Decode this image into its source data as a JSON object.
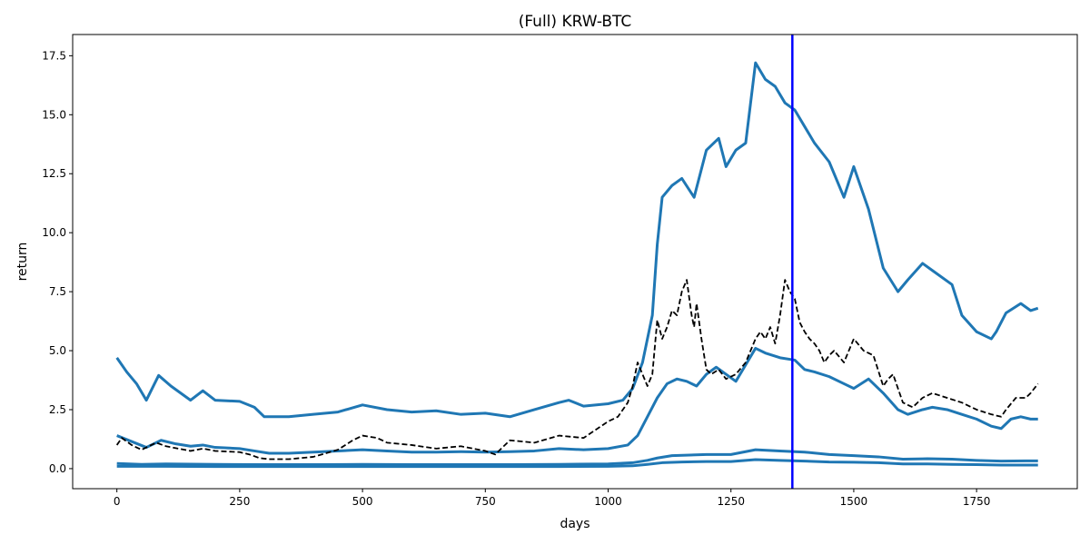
{
  "chart_data": {
    "type": "line",
    "title": "(Full) KRW-BTC",
    "xlabel": "days",
    "ylabel": "return",
    "xlim": [
      -90,
      1955
    ],
    "ylim": [
      -0.85,
      18.4
    ],
    "xticks": [
      0,
      250,
      500,
      750,
      1000,
      1250,
      1500,
      1750
    ],
    "yticks": [
      0.0,
      2.5,
      5.0,
      7.5,
      10.0,
      12.5,
      15.0,
      17.5
    ],
    "ytick_labels": [
      "0.0",
      "2.5",
      "5.0",
      "7.5",
      "10.0",
      "12.5",
      "15.0",
      "17.5"
    ],
    "grid": false,
    "vline": {
      "x": 1375,
      "color": "#0000ff"
    },
    "series": [
      {
        "color": "#1f77b4",
        "style": "solid",
        "x": [
          0,
          20,
          40,
          60,
          85,
          110,
          150,
          175,
          200,
          250,
          280,
          300,
          320,
          350,
          400,
          450,
          500,
          550,
          600,
          650,
          700,
          750,
          800,
          850,
          900,
          920,
          950,
          1000,
          1030,
          1050,
          1070,
          1090,
          1100,
          1110,
          1130,
          1150,
          1175,
          1200,
          1225,
          1240,
          1260,
          1280,
          1300,
          1320,
          1340,
          1360,
          1380,
          1400,
          1420,
          1450,
          1480,
          1500,
          1530,
          1560,
          1590,
          1610,
          1640,
          1660,
          1700,
          1720,
          1750,
          1780,
          1790,
          1810,
          1840,
          1860,
          1875
        ],
        "values": [
          4.7,
          4.1,
          3.6,
          2.9,
          3.95,
          3.5,
          2.9,
          3.3,
          2.9,
          2.85,
          2.6,
          2.2,
          2.2,
          2.2,
          2.3,
          2.4,
          2.7,
          2.5,
          2.4,
          2.45,
          2.3,
          2.35,
          2.2,
          2.5,
          2.8,
          2.9,
          2.65,
          2.75,
          2.9,
          3.4,
          4.5,
          6.5,
          9.5,
          11.5,
          12.0,
          12.3,
          11.5,
          13.5,
          14.0,
          12.8,
          13.5,
          13.8,
          17.2,
          16.5,
          16.2,
          15.5,
          15.2,
          14.5,
          13.8,
          13.0,
          11.5,
          12.8,
          11.0,
          8.5,
          7.5,
          8.0,
          8.7,
          8.4,
          7.8,
          6.5,
          5.8,
          5.5,
          5.8,
          6.6,
          7.0,
          6.7,
          6.8
        ]
      },
      {
        "color": "#1f77b4",
        "style": "solid",
        "x": [
          0,
          30,
          60,
          90,
          120,
          150,
          175,
          200,
          250,
          280,
          310,
          350,
          400,
          450,
          500,
          550,
          600,
          650,
          700,
          750,
          800,
          850,
          900,
          950,
          1000,
          1040,
          1060,
          1080,
          1100,
          1120,
          1140,
          1160,
          1180,
          1200,
          1220,
          1240,
          1260,
          1280,
          1300,
          1320,
          1350,
          1380,
          1400,
          1420,
          1450,
          1480,
          1500,
          1530,
          1560,
          1590,
          1610,
          1640,
          1660,
          1690,
          1720,
          1750,
          1780,
          1800,
          1820,
          1840,
          1860,
          1875
        ],
        "values": [
          1.4,
          1.15,
          0.9,
          1.2,
          1.05,
          0.95,
          1.0,
          0.9,
          0.85,
          0.75,
          0.65,
          0.65,
          0.7,
          0.75,
          0.8,
          0.75,
          0.7,
          0.7,
          0.72,
          0.7,
          0.72,
          0.75,
          0.85,
          0.8,
          0.85,
          1.0,
          1.4,
          2.2,
          3.0,
          3.6,
          3.8,
          3.7,
          3.5,
          4.0,
          4.3,
          4.0,
          3.7,
          4.4,
          5.1,
          4.9,
          4.7,
          4.6,
          4.2,
          4.1,
          3.9,
          3.6,
          3.4,
          3.8,
          3.2,
          2.5,
          2.3,
          2.5,
          2.6,
          2.5,
          2.3,
          2.1,
          1.8,
          1.7,
          2.1,
          2.2,
          2.1,
          2.1
        ]
      },
      {
        "color": "#1f77b4",
        "style": "solid",
        "x": [
          0,
          50,
          100,
          200,
          300,
          400,
          500,
          600,
          700,
          800,
          900,
          1000,
          1050,
          1080,
          1100,
          1130,
          1200,
          1250,
          1300,
          1350,
          1400,
          1450,
          1500,
          1550,
          1600,
          1650,
          1700,
          1750,
          1800,
          1850,
          1875
        ],
        "values": [
          0.22,
          0.18,
          0.2,
          0.18,
          0.17,
          0.17,
          0.18,
          0.17,
          0.17,
          0.17,
          0.18,
          0.2,
          0.25,
          0.35,
          0.45,
          0.55,
          0.6,
          0.6,
          0.8,
          0.75,
          0.7,
          0.6,
          0.55,
          0.5,
          0.4,
          0.42,
          0.4,
          0.35,
          0.32,
          0.33,
          0.33
        ]
      },
      {
        "color": "#1f77b4",
        "style": "solid",
        "x": [
          0,
          100,
          200,
          300,
          400,
          500,
          600,
          700,
          800,
          900,
          1000,
          1050,
          1080,
          1110,
          1150,
          1200,
          1250,
          1300,
          1350,
          1400,
          1450,
          1500,
          1550,
          1600,
          1650,
          1700,
          1750,
          1800,
          1850,
          1875
        ],
        "values": [
          0.1,
          0.1,
          0.09,
          0.09,
          0.09,
          0.09,
          0.09,
          0.09,
          0.09,
          0.09,
          0.1,
          0.12,
          0.18,
          0.25,
          0.28,
          0.3,
          0.3,
          0.38,
          0.35,
          0.32,
          0.28,
          0.27,
          0.25,
          0.2,
          0.2,
          0.18,
          0.17,
          0.15,
          0.15,
          0.15
        ]
      },
      {
        "color": "#000000",
        "style": "dashed",
        "x": [
          0,
          10,
          30,
          50,
          80,
          100,
          150,
          175,
          200,
          250,
          270,
          290,
          310,
          350,
          400,
          450,
          480,
          500,
          530,
          550,
          600,
          650,
          700,
          750,
          770,
          800,
          850,
          900,
          950,
          1000,
          1020,
          1040,
          1050,
          1060,
          1070,
          1080,
          1090,
          1100,
          1110,
          1120,
          1130,
          1140,
          1150,
          1160,
          1170,
          1175,
          1180,
          1190,
          1200,
          1210,
          1225,
          1240,
          1260,
          1280,
          1300,
          1310,
          1320,
          1330,
          1340,
          1350,
          1360,
          1370,
          1380,
          1390,
          1400,
          1410,
          1420,
          1430,
          1440,
          1450,
          1460,
          1480,
          1500,
          1520,
          1540,
          1560,
          1570,
          1580,
          1600,
          1620,
          1640,
          1660,
          1690,
          1720,
          1750,
          1780,
          1800,
          1810,
          1830,
          1850,
          1860,
          1875
        ],
        "values": [
          1.0,
          1.3,
          1.0,
          0.8,
          1.1,
          0.95,
          0.75,
          0.85,
          0.75,
          0.7,
          0.6,
          0.45,
          0.4,
          0.4,
          0.5,
          0.8,
          1.2,
          1.4,
          1.3,
          1.1,
          1.0,
          0.85,
          0.95,
          0.75,
          0.6,
          1.2,
          1.1,
          1.4,
          1.3,
          2.0,
          2.2,
          2.8,
          3.5,
          4.5,
          4.0,
          3.5,
          4.0,
          6.3,
          5.5,
          6.0,
          6.7,
          6.5,
          7.5,
          8.0,
          6.5,
          6.0,
          7.0,
          5.5,
          4.2,
          4.0,
          4.2,
          3.8,
          4.0,
          4.5,
          5.5,
          5.8,
          5.5,
          6.0,
          5.3,
          6.5,
          8.0,
          7.5,
          7.2,
          6.2,
          5.8,
          5.5,
          5.3,
          5.0,
          4.5,
          4.8,
          5.0,
          4.5,
          5.5,
          5.0,
          4.8,
          3.5,
          3.8,
          4.0,
          2.8,
          2.6,
          3.0,
          3.2,
          3.0,
          2.8,
          2.5,
          2.3,
          2.2,
          2.5,
          3.0,
          3.0,
          3.2,
          3.6
        ]
      }
    ]
  }
}
